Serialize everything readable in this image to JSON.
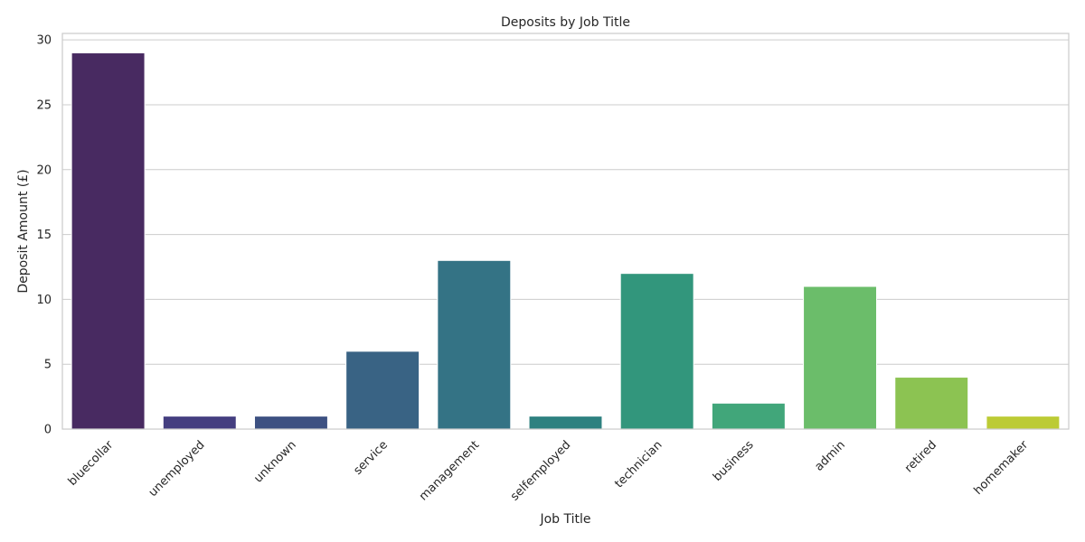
{
  "chart_data": {
    "type": "bar",
    "title": "Deposits by Job Title",
    "xlabel": "Job Title",
    "ylabel": "Deposit Amount (£)",
    "categories": [
      "bluecollar",
      "unemployed",
      "unknown",
      "service",
      "management",
      "selfemployed",
      "technician",
      "business",
      "admin",
      "retired",
      "homemaker"
    ],
    "values": [
      29,
      1,
      1,
      6,
      13,
      1,
      12,
      2,
      11,
      4,
      1
    ],
    "colors": [
      "#482a61",
      "#443e80",
      "#3d5182",
      "#396384",
      "#347385",
      "#2e8180",
      "#32967c",
      "#41a67a",
      "#6bbd6a",
      "#8cc352",
      "#bccb35"
    ],
    "ylim": [
      0,
      30.5
    ],
    "yticks": [
      0,
      5,
      10,
      15,
      20,
      25,
      30
    ],
    "grid": "horizontal",
    "legend": "none"
  }
}
